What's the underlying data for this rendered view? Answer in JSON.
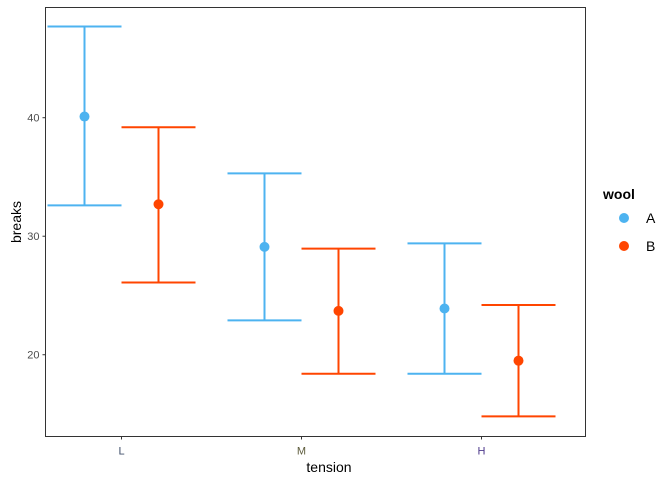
{
  "chart_data": {
    "type": "errorbar",
    "title": "",
    "xlabel": "tension",
    "ylabel": "breaks",
    "categories": [
      "L",
      "M",
      "H"
    ],
    "category_colors": [
      "#404f6b",
      "#5c5a3a",
      "#4e3a8c"
    ],
    "ylim": [
      13.1,
      49.3
    ],
    "yticks": [
      20,
      30,
      40
    ],
    "grid": false,
    "legend": {
      "title": "wool",
      "placement": "right",
      "entries": [
        "A",
        "B"
      ]
    },
    "series": [
      {
        "name": "A",
        "color": "#4DB3F0",
        "mean": [
          40.1,
          29.1,
          23.9
        ],
        "lower": [
          32.6,
          22.9,
          18.4
        ],
        "upper": [
          47.7,
          35.3,
          29.4
        ]
      },
      {
        "name": "B",
        "color": "#FF4500",
        "mean": [
          32.7,
          23.7,
          19.5
        ],
        "lower": [
          26.1,
          18.4,
          14.8
        ],
        "upper": [
          39.2,
          28.95,
          24.2
        ]
      }
    ]
  }
}
